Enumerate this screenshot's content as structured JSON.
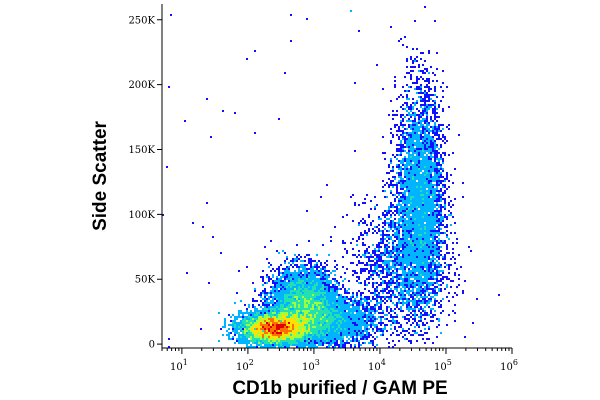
{
  "chart_data": {
    "type": "scatter",
    "subtype": "flow-cytometry-density-dot-plot",
    "xlabel": "CD1b purified / GAM PE",
    "ylabel": "Side Scatter",
    "x_scale": "log",
    "xlim": [
      5,
      1000000
    ],
    "ylim": [
      -3000,
      262144
    ],
    "x_ticks": [
      {
        "label_base": "10",
        "label_exp": "1",
        "value": 10
      },
      {
        "label_base": "10",
        "label_exp": "2",
        "value": 100
      },
      {
        "label_base": "10",
        "label_exp": "3",
        "value": 1000
      },
      {
        "label_base": "10",
        "label_exp": "4",
        "value": 10000
      },
      {
        "label_base": "10",
        "label_exp": "5",
        "value": 100000
      },
      {
        "label_base": "10",
        "label_exp": "6",
        "value": 1000000
      }
    ],
    "y_ticks": [
      {
        "label": "0",
        "value": 0
      },
      {
        "label": "50K",
        "value": 50000
      },
      {
        "label": "100K",
        "value": 100000
      },
      {
        "label": "150K",
        "value": 150000
      },
      {
        "label": "200K",
        "value": 200000
      },
      {
        "label": "250K",
        "value": 250000
      }
    ],
    "grid": false,
    "legend": "none",
    "density_colors": [
      "#1010ff",
      "#00b4ff",
      "#22e0b0",
      "#9cff40",
      "#ffe000",
      "#ff7000",
      "#e00000"
    ],
    "populations": [
      {
        "x_center": 250,
        "y_center": 12000,
        "x_spread_decades": 0.25,
        "y_spread": 6000,
        "relative_density": 1.0
      },
      {
        "x_center": 700,
        "y_center": 30000,
        "x_spread_decades": 0.25,
        "y_spread": 14000,
        "relative_density": 0.55
      },
      {
        "x_center": 1500,
        "y_center": 18000,
        "x_spread_decades": 0.4,
        "y_spread": 10000,
        "relative_density": 0.3
      },
      {
        "x_center": 40000,
        "y_center": 110000,
        "x_spread_decades": 0.18,
        "y_spread": 42000,
        "relative_density": 0.45
      },
      {
        "x_center": 20000,
        "y_center": 60000,
        "x_spread_decades": 0.35,
        "y_spread": 25000,
        "relative_density": 0.15
      }
    ]
  }
}
